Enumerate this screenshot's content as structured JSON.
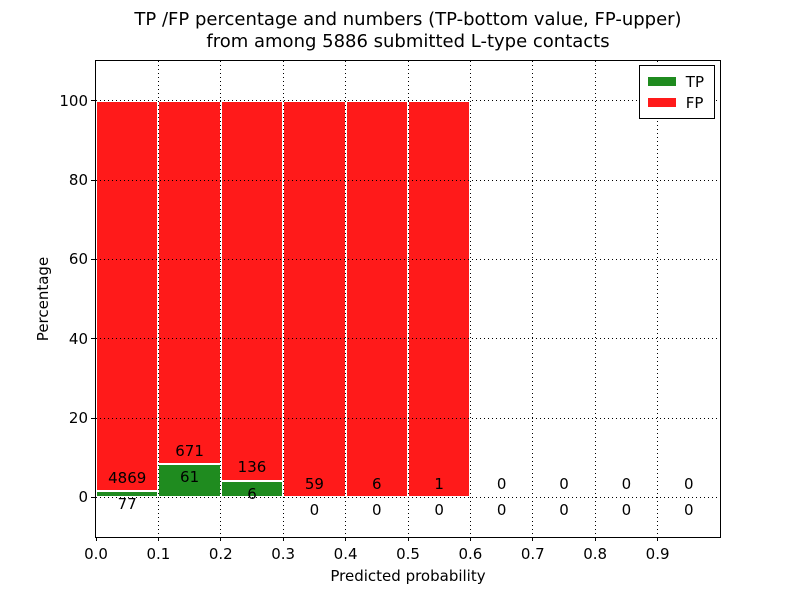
{
  "chart_data": {
    "type": "bar",
    "stacked": true,
    "title_line1": "TP /FP percentage and numbers (TP-bottom value, FP-upper)",
    "title_line2": "from among 5886 submitted L-type contacts",
    "total_submitted": 5886,
    "xlabel": "Predicted probability",
    "ylabel": "Percentage",
    "xlim": [
      0.0,
      1.0
    ],
    "ylim": [
      -10,
      110
    ],
    "bin_width": 0.1,
    "grid": "dotted",
    "categories": [
      "0.0-0.1",
      "0.1-0.2",
      "0.2-0.3",
      "0.3-0.4",
      "0.4-0.5",
      "0.5-0.6",
      "0.6-0.7",
      "0.7-0.8",
      "0.8-0.9",
      "0.9-1.0"
    ],
    "series": [
      {
        "name": "TP",
        "color": "#1f8b1f",
        "counts": [
          77,
          61,
          6,
          0,
          0,
          0,
          0,
          0,
          0,
          0
        ],
        "pct": [
          1.56,
          8.33,
          4.23,
          0,
          0,
          0,
          0,
          0,
          0,
          0
        ]
      },
      {
        "name": "FP",
        "color": "#ff1a1a",
        "counts": [
          4869,
          671,
          136,
          59,
          6,
          1,
          0,
          0,
          0,
          0
        ],
        "pct": [
          98.44,
          91.67,
          95.77,
          100,
          100,
          100,
          0,
          0,
          0,
          0
        ]
      }
    ],
    "count_labels_fp": [
      "4869",
      "671",
      "136",
      "59",
      "6",
      "1",
      "0",
      "0",
      "0",
      "0"
    ],
    "count_labels_tp": [
      "77",
      "61",
      "6",
      "0",
      "0",
      "0",
      "0",
      "0",
      "0",
      "0"
    ],
    "xticks": [
      "0.0",
      "0.1",
      "0.2",
      "0.3",
      "0.4",
      "0.5",
      "0.6",
      "0.7",
      "0.8",
      "0.9"
    ],
    "yticks": [
      "0",
      "20",
      "40",
      "60",
      "80",
      "100"
    ],
    "xgrid": [
      0.1,
      0.2,
      0.3,
      0.4,
      0.5,
      0.6,
      0.7,
      0.8,
      0.9
    ],
    "legend": {
      "position": "upper right",
      "entries": [
        {
          "label": "TP",
          "color": "#1f8b1f"
        },
        {
          "label": "FP",
          "color": "#ff1a1a"
        }
      ]
    },
    "colors": {
      "background": "#ffffff",
      "grid": "#000000",
      "text": "#000000",
      "bar_edge": "#ffffff"
    }
  }
}
